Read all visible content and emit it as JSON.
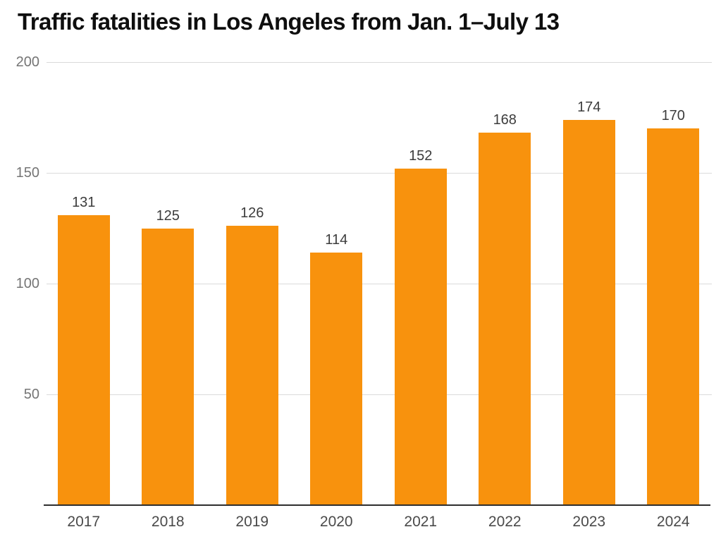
{
  "header": {
    "title_note": "title lives in chart_data.title"
  },
  "chart_data": {
    "type": "bar",
    "title": "Traffic fatalities in Los Angeles from Jan. 1–July 13",
    "categories": [
      "2017",
      "2018",
      "2019",
      "2020",
      "2021",
      "2022",
      "2023",
      "2024"
    ],
    "values": [
      131,
      125,
      126,
      114,
      152,
      168,
      174,
      170
    ],
    "xlabel": "",
    "ylabel": "",
    "ylim": [
      0,
      200
    ],
    "yticks": [
      50,
      100,
      150,
      200
    ],
    "grid": true,
    "legend_position": "none",
    "data_labels_shown": true,
    "colors": {
      "bar": "#F8920D",
      "gridline": "#DADADA",
      "axis_line": "#2E2E2E",
      "title_text": "#0E0E0E",
      "tick_text": "#757575",
      "category_text": "#4A4A4A",
      "value_text": "#3C3C3C",
      "background": "#FFFFFF"
    }
  }
}
